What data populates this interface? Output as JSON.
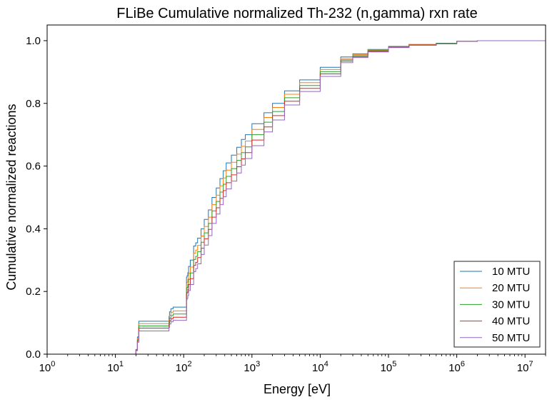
{
  "chart_data": {
    "type": "line",
    "title": "FLiBe Cumulative normalized Th-232 (n,gamma) rxn rate",
    "xlabel": "Energy [eV]",
    "ylabel": "Cumulative normalized reactions",
    "x_scale": "log",
    "xlim": [
      1,
      20000000
    ],
    "ylim": [
      0,
      1.05
    ],
    "x_ticks": [
      {
        "value": 1,
        "base": "10",
        "exp": "0"
      },
      {
        "value": 10,
        "base": "10",
        "exp": "1"
      },
      {
        "value": 100,
        "base": "10",
        "exp": "2"
      },
      {
        "value": 1000,
        "base": "10",
        "exp": "3"
      },
      {
        "value": 10000,
        "base": "10",
        "exp": "4"
      },
      {
        "value": 100000,
        "base": "10",
        "exp": "5"
      },
      {
        "value": 1000000,
        "base": "10",
        "exp": "6"
      },
      {
        "value": 10000000,
        "base": "10",
        "exp": "7"
      }
    ],
    "y_ticks": [
      {
        "value": 0.0,
        "label": "0.0"
      },
      {
        "value": 0.2,
        "label": "0.2"
      },
      {
        "value": 0.4,
        "label": "0.4"
      },
      {
        "value": 0.6,
        "label": "0.6"
      },
      {
        "value": 0.8,
        "label": "0.8"
      },
      {
        "value": 1.0,
        "label": "1.0"
      }
    ],
    "grid": false,
    "legend_position": "lower-right",
    "x": [
      1,
      19,
      20,
      21,
      22,
      60,
      61,
      62,
      65,
      70,
      110,
      112,
      115,
      118,
      125,
      140,
      150,
      160,
      180,
      200,
      230,
      260,
      300,
      340,
      380,
      420,
      500,
      600,
      700,
      800,
      1000,
      1500,
      2000,
      3000,
      5000,
      10000,
      20000,
      30000,
      50000,
      100000,
      200000,
      500000,
      1000000,
      2000000,
      20000000
    ],
    "series": [
      {
        "name": "10 MTU",
        "color": "#1f77b4",
        "values": [
          0,
          0,
          0.015,
          0.055,
          0.105,
          0.105,
          0.12,
          0.135,
          0.145,
          0.15,
          0.245,
          0.25,
          0.26,
          0.28,
          0.3,
          0.345,
          0.355,
          0.37,
          0.4,
          0.43,
          0.46,
          0.5,
          0.53,
          0.56,
          0.585,
          0.61,
          0.635,
          0.66,
          0.685,
          0.7,
          0.735,
          0.77,
          0.8,
          0.84,
          0.875,
          0.915,
          0.948,
          0.958,
          0.972,
          0.982,
          0.988,
          0.992,
          0.998,
          1.0,
          1.0
        ]
      },
      {
        "name": "20 MTU",
        "color": "#ff7f0e",
        "values": [
          0,
          0,
          0.014,
          0.05,
          0.097,
          0.097,
          0.11,
          0.124,
          0.133,
          0.138,
          0.225,
          0.23,
          0.24,
          0.258,
          0.278,
          0.322,
          0.332,
          0.347,
          0.377,
          0.407,
          0.437,
          0.477,
          0.507,
          0.537,
          0.562,
          0.587,
          0.612,
          0.638,
          0.663,
          0.68,
          0.717,
          0.755,
          0.787,
          0.829,
          0.866,
          0.908,
          0.943,
          0.955,
          0.97,
          0.981,
          0.987,
          0.991,
          0.998,
          1.0,
          1.0
        ]
      },
      {
        "name": "30 MTU",
        "color": "#2ca02c",
        "values": [
          0,
          0,
          0.013,
          0.046,
          0.09,
          0.09,
          0.102,
          0.115,
          0.123,
          0.128,
          0.208,
          0.213,
          0.222,
          0.239,
          0.259,
          0.302,
          0.312,
          0.327,
          0.357,
          0.387,
          0.417,
          0.457,
          0.487,
          0.517,
          0.542,
          0.567,
          0.592,
          0.618,
          0.643,
          0.661,
          0.7,
          0.74,
          0.774,
          0.818,
          0.857,
          0.901,
          0.939,
          0.952,
          0.968,
          0.98,
          0.986,
          0.991,
          0.998,
          1.0,
          1.0
        ]
      },
      {
        "name": "40 MTU",
        "color": "#d62728",
        "values": [
          0,
          0,
          0.012,
          0.042,
          0.083,
          0.083,
          0.094,
          0.106,
          0.113,
          0.118,
          0.192,
          0.197,
          0.206,
          0.222,
          0.241,
          0.283,
          0.293,
          0.308,
          0.338,
          0.368,
          0.398,
          0.437,
          0.467,
          0.497,
          0.522,
          0.547,
          0.572,
          0.598,
          0.623,
          0.643,
          0.683,
          0.725,
          0.761,
          0.807,
          0.848,
          0.894,
          0.935,
          0.949,
          0.966,
          0.979,
          0.986,
          0.99,
          0.998,
          1.0,
          1.0
        ]
      },
      {
        "name": "50 MTU",
        "color": "#9467bd",
        "values": [
          0,
          0,
          0.011,
          0.038,
          0.074,
          0.074,
          0.085,
          0.096,
          0.103,
          0.108,
          0.173,
          0.178,
          0.187,
          0.203,
          0.222,
          0.263,
          0.273,
          0.288,
          0.318,
          0.348,
          0.378,
          0.417,
          0.447,
          0.477,
          0.502,
          0.527,
          0.552,
          0.578,
          0.603,
          0.624,
          0.665,
          0.709,
          0.747,
          0.795,
          0.838,
          0.886,
          0.93,
          0.946,
          0.964,
          0.978,
          0.985,
          0.99,
          0.998,
          1.0,
          1.0
        ]
      }
    ]
  }
}
